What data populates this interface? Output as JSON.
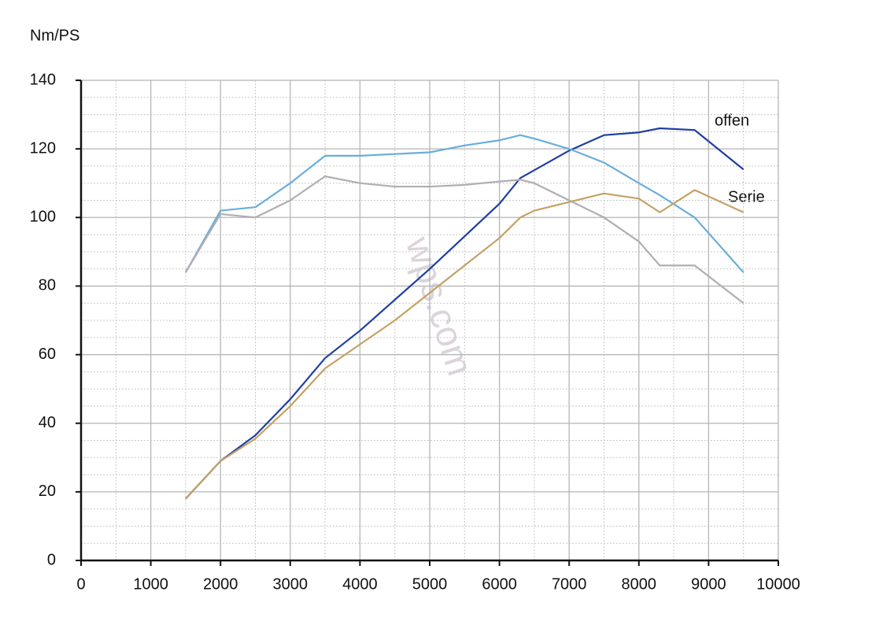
{
  "chart_data": {
    "type": "line",
    "y_label": "Nm/PS",
    "annotations": [
      "offen",
      "Serie"
    ],
    "watermark": "wps.com",
    "xlim": [
      0,
      10000
    ],
    "xticks": [
      0,
      1000,
      2000,
      3000,
      4000,
      5000,
      6000,
      7000,
      8000,
      9000,
      10000
    ],
    "ylim": [
      0,
      140
    ],
    "yticks": [
      0,
      20,
      40,
      60,
      80,
      100,
      120,
      140
    ],
    "grid": true,
    "series": [
      {
        "color": "#1f3fa0",
        "x": [
          1500,
          2000,
          2500,
          3000,
          3500,
          4000,
          5000,
          6000,
          6300,
          7000,
          7500,
          8000,
          8300,
          8800,
          9500
        ],
        "values": [
          18,
          29,
          36.5,
          47,
          59,
          67,
          85,
          104,
          111.5,
          119.5,
          124,
          124.8,
          126,
          125.5,
          114
        ]
      },
      {
        "color": "#6aaedc",
        "x": [
          1500,
          2000,
          2500,
          3000,
          3500,
          4000,
          5000,
          5500,
          6000,
          6300,
          6500,
          7000,
          7500,
          8000,
          8300,
          8800,
          9500
        ],
        "values": [
          84,
          102,
          103,
          110,
          118,
          118,
          119,
          121,
          122.5,
          124,
          123,
          120,
          116,
          110,
          106.5,
          100,
          84
        ]
      },
      {
        "color": "#b0aeb2",
        "x": [
          1500,
          2000,
          2500,
          3000,
          3500,
          4000,
          4500,
          5000,
          5500,
          6000,
          6300,
          6500,
          7000,
          7500,
          8000,
          8300,
          8800,
          9500
        ],
        "values": [
          84,
          101,
          100,
          105,
          112,
          110,
          109,
          109,
          109.5,
          110.5,
          111,
          110,
          105,
          100,
          93,
          86,
          86,
          75
        ]
      },
      {
        "color": "#c4a265",
        "x": [
          1500,
          2000,
          2500,
          3000,
          3500,
          4000,
          4500,
          5000,
          5500,
          6000,
          6300,
          6500,
          7000,
          7500,
          8000,
          8300,
          8800,
          9500
        ],
        "values": [
          18,
          29,
          35.5,
          45,
          56,
          63,
          70,
          78,
          86,
          94,
          100,
          102,
          104.5,
          107,
          105.5,
          101.5,
          108,
          101.5
        ]
      }
    ]
  }
}
